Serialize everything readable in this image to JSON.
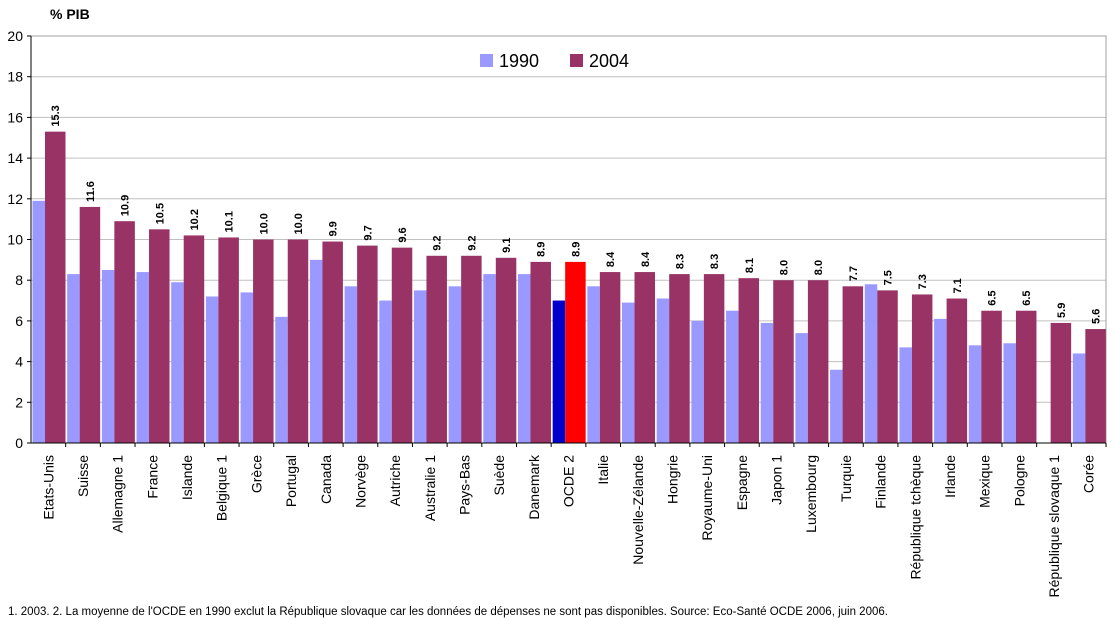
{
  "chart_data": {
    "type": "bar",
    "ylabel": "% PIB",
    "ylim": [
      0,
      20
    ],
    "yticks": [
      0,
      2,
      4,
      6,
      8,
      10,
      12,
      14,
      16,
      18,
      20
    ],
    "grid": true,
    "legend_position": "top-center",
    "categories": [
      "Etats-Unis",
      "Suisse",
      "Allemagne 1",
      "France",
      "Islande",
      "Belgique 1",
      "Grèce",
      "Portugal",
      "Canada",
      "Norvège",
      "Autriche",
      "Australie 1",
      "Pays-Bas",
      "Suède",
      "Danemark",
      "OCDE 2",
      "Italie",
      "Nouvelle-Zélande",
      "Hongrie",
      "Royaume-Uni",
      "Espagne",
      "Japon 1",
      "Luxembourg",
      "Turquie",
      "Finlande",
      "République tchèque",
      "Irlande",
      "Mexique",
      "Pologne",
      "République slovaque 1",
      "Corée"
    ],
    "series": [
      {
        "name": "1990",
        "color": "#9999ff",
        "values": [
          11.9,
          8.3,
          8.5,
          8.4,
          7.9,
          7.2,
          7.4,
          6.2,
          9.0,
          7.7,
          7.0,
          7.5,
          7.7,
          8.3,
          8.3,
          7.0,
          7.7,
          6.9,
          7.1,
          6.0,
          6.5,
          5.9,
          5.4,
          3.6,
          7.8,
          4.7,
          6.1,
          4.8,
          4.9,
          null,
          4.4
        ],
        "highlight": {
          "index": 15,
          "color": "#0000cc"
        }
      },
      {
        "name": "2004",
        "color": "#993366",
        "values": [
          15.3,
          11.6,
          10.9,
          10.5,
          10.2,
          10.1,
          10.0,
          10.0,
          9.9,
          9.7,
          9.6,
          9.2,
          9.2,
          9.1,
          8.9,
          8.9,
          8.4,
          8.4,
          8.3,
          8.3,
          8.1,
          8.0,
          8.0,
          7.7,
          7.5,
          7.3,
          7.1,
          6.5,
          6.5,
          5.9,
          5.6
        ],
        "highlight": {
          "index": 15,
          "color": "#ff0000"
        }
      }
    ],
    "data_labels": [
      "15.3",
      "11.6",
      "10.9",
      "10.5",
      "10.2",
      "10.1",
      "10.0",
      "10.0",
      "9.9",
      "9.7",
      "9.6",
      "9.2",
      "9.2",
      "9.1",
      "8.9",
      "8.9",
      "8.4",
      "8.4",
      "8.3",
      "8.3",
      "8.1",
      "8.0",
      "8.0",
      "7.7",
      "7.5",
      "7.3",
      "7.1",
      "6.5",
      "6.5",
      "5.9",
      "5.6"
    ]
  },
  "footnote": "1. 2003.  2. La moyenne de l'OCDE en 1990 exclut la République slovaque car les données de dépenses ne sont pas disponibles.  Source: Eco-Santé OCDE 2006, juin 2006.",
  "colors": {
    "grid": "#c0c0c0",
    "axis": "#000000",
    "background": "#ffffff"
  }
}
